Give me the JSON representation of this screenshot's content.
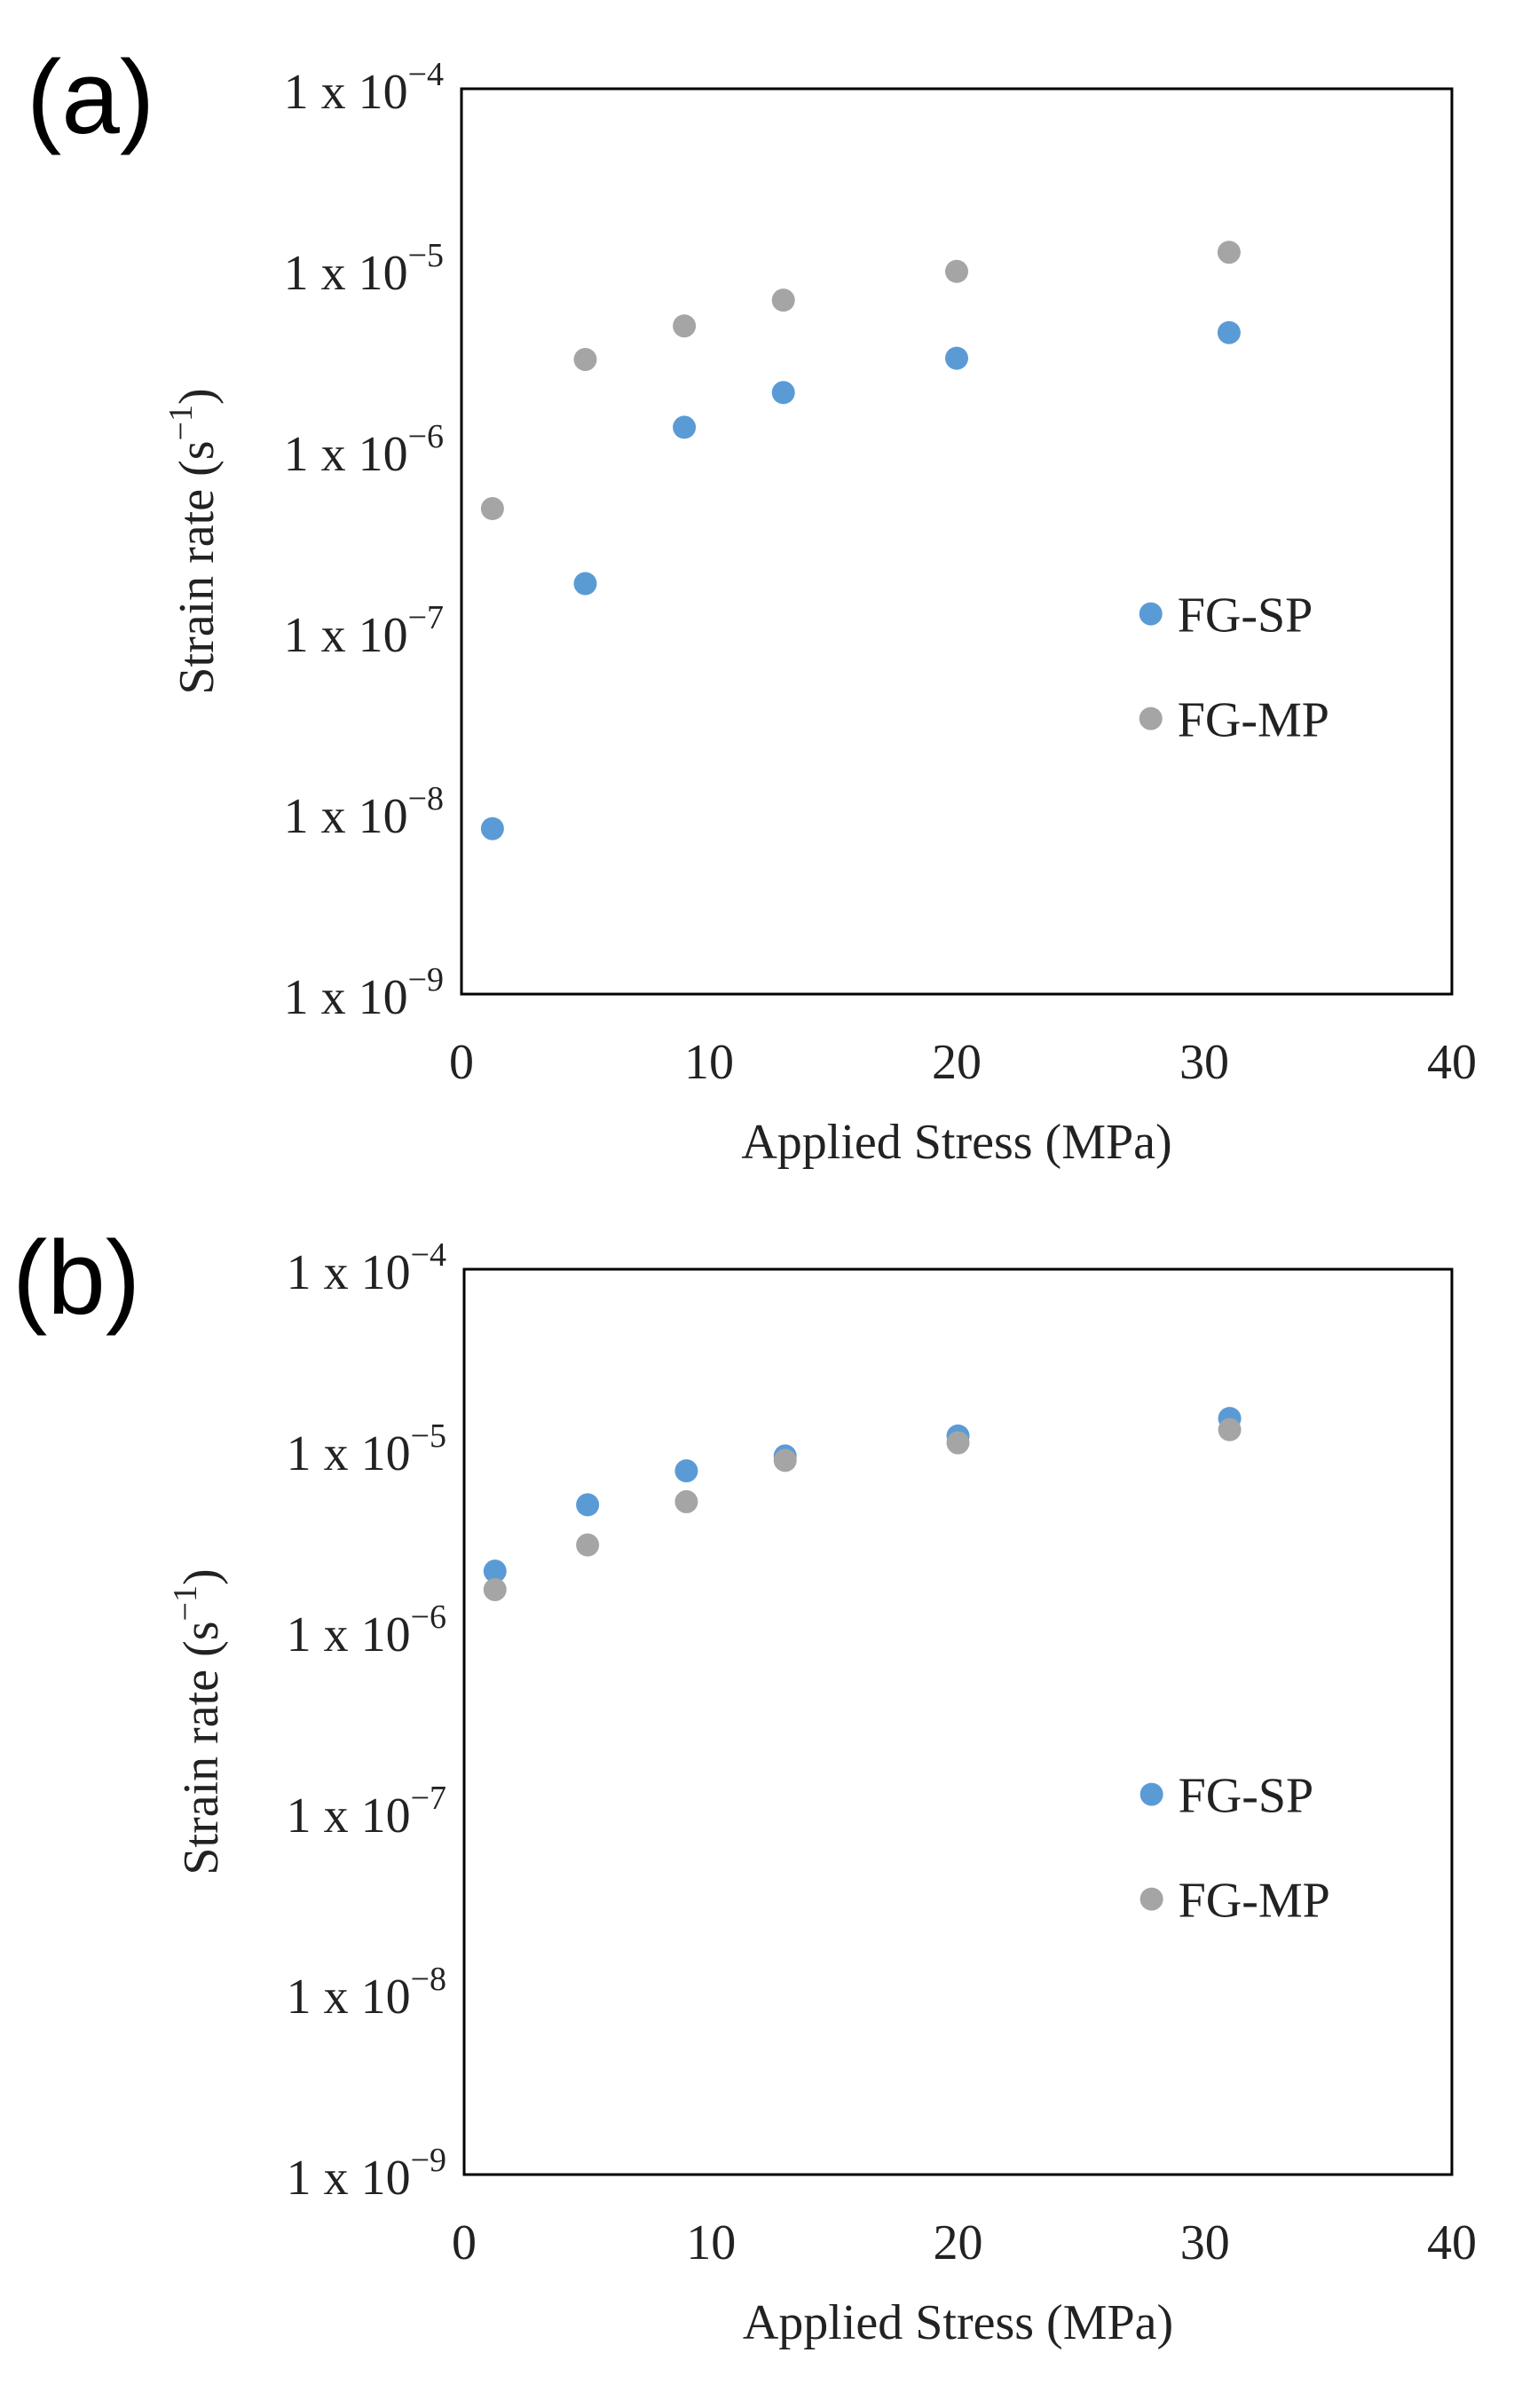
{
  "chart_data": [
    {
      "type": "scatter",
      "panel_label": "(a)",
      "xlabel": "Applied Stress (MPa)",
      "ylabel": "Strain rate (s",
      "ylabel_sup": "−1",
      "ylabel_close": ")",
      "xlim": [
        0,
        40
      ],
      "ylim_exponents": [
        -9,
        -4
      ],
      "yscale": "log",
      "x_ticks": [
        "0",
        "10",
        "20",
        "30",
        "40"
      ],
      "y_tick_base": "1 x 10",
      "y_tick_exponents": [
        "−9",
        "−8",
        "−7",
        "−6",
        "−5",
        "−4"
      ],
      "legend_position": "right-middle",
      "series": [
        {
          "name": "FG-SP",
          "color": "#5B9BD5",
          "x": [
            1.25,
            5,
            9,
            13,
            20,
            31
          ],
          "y": [
            8.2e-09,
            1.85e-07,
            1.35e-06,
            2.1e-06,
            3.25e-06,
            4.5e-06
          ]
        },
        {
          "name": "FG-MP",
          "color": "#A5A5A5",
          "x": [
            1.25,
            5,
            9,
            13,
            20,
            31
          ],
          "y": [
            4.8e-07,
            3.2e-06,
            4.9e-06,
            6.8e-06,
            9.8e-06,
            1.25e-05
          ]
        }
      ]
    },
    {
      "type": "scatter",
      "panel_label": "(b)",
      "xlabel": "Applied Stress (MPa)",
      "ylabel": "Strain rate (s",
      "ylabel_sup": "−1",
      "ylabel_close": ")",
      "xlim": [
        0,
        40
      ],
      "ylim_exponents": [
        -9,
        -4
      ],
      "yscale": "log",
      "x_ticks": [
        "0",
        "10",
        "20",
        "30",
        "40"
      ],
      "y_tick_base": "1 x 10",
      "y_tick_exponents": [
        "−9",
        "−8",
        "−7",
        "−6",
        "−5",
        "−4"
      ],
      "legend_position": "right-middle",
      "series": [
        {
          "name": "FG-SP",
          "color": "#5B9BD5",
          "x": [
            1.25,
            5,
            9,
            13,
            20,
            31
          ],
          "y": [
            2.15e-06,
            5e-06,
            7.7e-06,
            9.3e-06,
            1.2e-05,
            1.5e-05
          ]
        },
        {
          "name": "FG-MP",
          "color": "#A5A5A5",
          "x": [
            1.25,
            5,
            9,
            13,
            20,
            31
          ],
          "y": [
            1.7e-06,
            3e-06,
            5.2e-06,
            8.8e-06,
            1.1e-05,
            1.3e-05
          ]
        }
      ]
    }
  ]
}
